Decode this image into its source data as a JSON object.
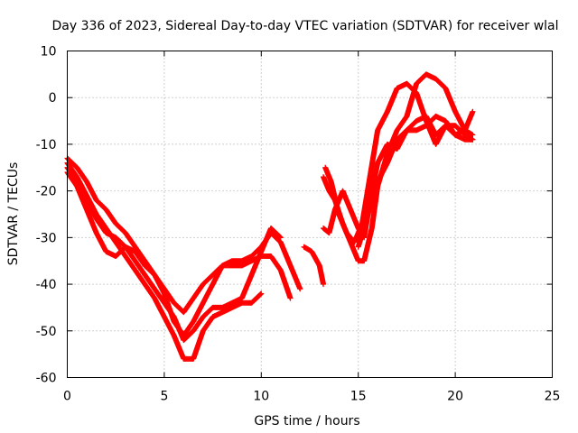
{
  "chart_data": {
    "type": "scatter",
    "title": "Day 336 of 2023, Sidereal Day-to-day VTEC variation (SDTVAR) for receiver wlal",
    "xlabel": "GPS time / hours",
    "ylabel": "SDTVAR / TECUs",
    "xlim": [
      0,
      25
    ],
    "ylim": [
      -60,
      10
    ],
    "xticks": [
      "0",
      "5",
      "10",
      "15",
      "20",
      "25"
    ],
    "yticks": [
      "10",
      "0",
      "-10",
      "-20",
      "-30",
      "-40",
      "-50",
      "-60"
    ],
    "grid": true,
    "marker": "plus",
    "color": "#ff0000",
    "series": [
      {
        "x": [
          0,
          0.5,
          1.0,
          1.5,
          2.0,
          2.5,
          3.0,
          3.5,
          4.0,
          4.5,
          5.0,
          5.5,
          6.0,
          6.5,
          7.0,
          7.5,
          8.0,
          8.5,
          9.0,
          9.5,
          10.0
        ],
        "y": [
          -14,
          -17,
          -21,
          -25,
          -28,
          -31,
          -34,
          -37,
          -40,
          -43,
          -47,
          -51,
          -56,
          -56,
          -50,
          -47,
          -46,
          -45,
          -44,
          -44,
          -42
        ]
      },
      {
        "x": [
          0,
          0.5,
          1.0,
          1.5,
          2.0,
          2.5,
          3.0,
          3.5,
          4.0,
          4.5,
          5.0,
          5.5,
          6.0,
          6.5,
          7.0,
          7.5,
          8.0,
          8.5,
          9.0,
          9.5,
          10.0,
          10.5,
          11.0,
          11.5
        ],
        "y": [
          -15,
          -18,
          -22,
          -26,
          -29,
          -30,
          -32,
          -33,
          -36,
          -38,
          -42,
          -48,
          -51,
          -48,
          -44,
          -40,
          -36,
          -36,
          -36,
          -35,
          -34,
          -34,
          -37,
          -43
        ]
      },
      {
        "x": [
          0,
          0.5,
          1.0,
          1.5,
          2.0,
          2.5,
          3.0,
          3.5,
          4.0,
          4.5,
          5.0,
          5.5,
          6.0,
          6.5,
          7.0,
          7.5,
          8.0,
          8.5,
          9.0,
          9.5,
          10.0,
          10.5,
          11.0,
          11.5,
          12.0
        ],
        "y": [
          -13,
          -15,
          -18,
          -22,
          -24,
          -27,
          -29,
          -32,
          -35,
          -38,
          -41,
          -44,
          -46,
          -43,
          -40,
          -38,
          -36,
          -35,
          -35,
          -34,
          -32,
          -29,
          -31,
          -36,
          -41
        ]
      },
      {
        "x": [
          0,
          0.5,
          1.0,
          1.5,
          2.0,
          2.5,
          3.0,
          3.5,
          4.0,
          4.5,
          5.0,
          5.5,
          6.0,
          6.5,
          7.0,
          7.5,
          8.0,
          8.5,
          9.0,
          9.5,
          10.0,
          10.5,
          11.0
        ],
        "y": [
          -16,
          -19,
          -24,
          -29,
          -33,
          -34,
          -32,
          -35,
          -38,
          -41,
          -44,
          -47,
          -52,
          -50,
          -47,
          -45,
          -45,
          -44,
          -43,
          -38,
          -33,
          -28,
          -30
        ]
      },
      {
        "x": [
          12.2,
          12.6,
          13.0,
          13.2
        ],
        "y": [
          -32,
          -33,
          -36,
          -40
        ]
      },
      {
        "x": [
          13.2,
          13.5,
          13.8,
          14.2,
          14.6,
          15.0,
          15.3,
          15.7,
          16.0,
          16.5,
          17.0,
          17.5,
          18.0,
          18.5,
          19.0,
          19.5,
          20.0,
          20.5,
          20.9
        ],
        "y": [
          -17,
          -20,
          -22,
          -27,
          -31,
          -35,
          -35,
          -28,
          -19,
          -12,
          -7,
          -4,
          3,
          5,
          4,
          2,
          -3,
          -7,
          -3
        ]
      },
      {
        "x": [
          13.2,
          13.5,
          13.8,
          14.2,
          14.6,
          15.0,
          15.3,
          15.7,
          16.0,
          16.5,
          17.0,
          17.5,
          18.0,
          18.5,
          19.0,
          19.5,
          20.0,
          20.5,
          20.9
        ],
        "y": [
          -28,
          -29,
          -24,
          -20,
          -24,
          -28,
          -30,
          -20,
          -14,
          -10,
          -11,
          -7,
          -5,
          -4,
          -8,
          -6,
          -8,
          -7,
          -8
        ]
      },
      {
        "x": [
          13.3,
          13.6,
          14.0,
          14.4,
          14.8,
          15.2,
          15.6,
          16.0,
          16.5,
          17.0,
          17.5,
          18.0,
          18.5,
          19.0,
          19.5,
          20.0,
          20.5,
          20.9
        ],
        "y": [
          -15,
          -18,
          -25,
          -29,
          -31,
          -27,
          -17,
          -7,
          -3,
          2,
          3,
          1,
          -5,
          -10,
          -6,
          -6,
          -8,
          -9
        ]
      },
      {
        "x": [
          15.0,
          15.5,
          16.0,
          16.5,
          17.0,
          17.5,
          18.0,
          18.5,
          19.0,
          19.5,
          20.0,
          20.5,
          20.9
        ],
        "y": [
          -32,
          -25,
          -18,
          -14,
          -9,
          -7,
          -7,
          -6,
          -4,
          -5,
          -8,
          -9,
          -9
        ]
      }
    ]
  }
}
